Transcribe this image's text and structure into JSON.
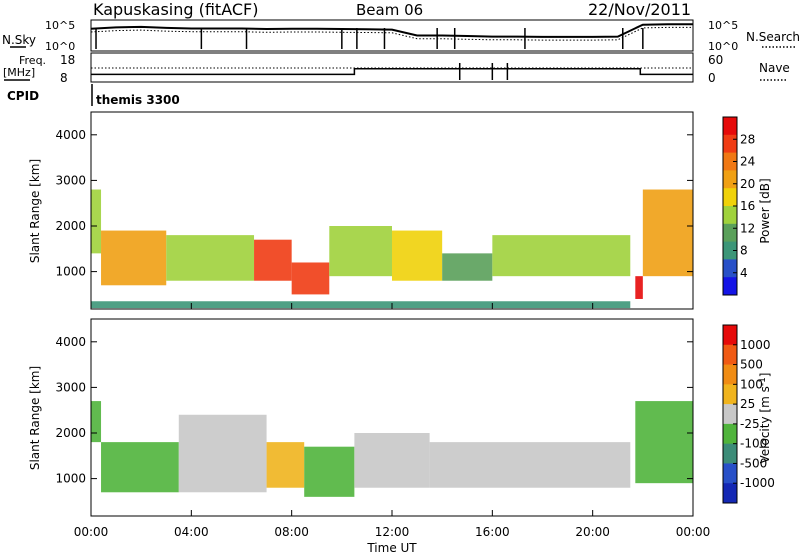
{
  "header": {
    "station": "Kapuskasing (fitACF)",
    "beam": "Beam 06",
    "date": "22/Nov/2011"
  },
  "sky_panel": {
    "left_label": "N.Sky",
    "right_label": "N.Search",
    "left_ticks": [
      "10^5",
      "10^0"
    ],
    "right_ticks": [
      "10^5",
      "10^0"
    ]
  },
  "freq_panel": {
    "left_label_top": "Freq.",
    "left_label_unit": "[MHz]",
    "right_label": "Nave",
    "left_ticks": [
      "18",
      "8"
    ],
    "right_ticks": [
      "60",
      "0"
    ]
  },
  "cpid_panel": {
    "label": "CPID",
    "mode": "themis 3300"
  },
  "power_panel": {
    "ylabel": "Slant Range [km]",
    "yticks": [
      "4000",
      "3000",
      "2000",
      "1000"
    ],
    "colorbar_label": "Power [dB]",
    "colorbar_ticks": [
      "28",
      "24",
      "20",
      "16",
      "12",
      "8",
      "4"
    ],
    "colors": [
      "#1414e6",
      "#2850c8",
      "#3c9678",
      "#5aa05a",
      "#a0d23c",
      "#f0d20a",
      "#f0a014",
      "#f07814",
      "#f03c14",
      "#e60a0a"
    ]
  },
  "velocity_panel": {
    "ylabel": "Slant Range [km]",
    "yticks": [
      "4000",
      "3000",
      "2000",
      "1000"
    ],
    "colorbar_label": "Velocity [m s^-1]",
    "colorbar_ticks": [
      "1000",
      "500",
      "100",
      "25",
      "-25",
      "-100",
      "-500",
      "-1000"
    ],
    "colors": [
      "#1428b4",
      "#2850c8",
      "#3c8c78",
      "#50b43c",
      "#c8c8c8",
      "#f0b41e",
      "#f08c14",
      "#f05a14",
      "#e60a0a"
    ]
  },
  "x_axis": {
    "ticks": [
      "00:00",
      "04:00",
      "08:00",
      "12:00",
      "16:00",
      "20:00",
      "00:00"
    ],
    "label": "Time UT"
  },
  "chart_data": [
    {
      "type": "line",
      "series": [
        {
          "name": "N.Sky",
          "x": [
            0,
            1,
            2,
            3,
            4,
            5,
            6,
            7,
            8,
            9,
            10,
            11,
            12,
            13,
            14,
            15,
            16,
            17,
            18,
            19,
            20,
            21,
            22,
            23,
            24
          ],
          "values": [
            0.75,
            0.8,
            0.82,
            0.78,
            0.76,
            0.76,
            0.76,
            0.74,
            0.75,
            0.75,
            0.74,
            0.73,
            0.72,
            0.5,
            0.5,
            0.48,
            0.46,
            0.46,
            0.45,
            0.45,
            0.45,
            0.46,
            0.9,
            0.92,
            0.92
          ]
        }
      ],
      "yscale": "log"
    },
    {
      "type": "line",
      "series": [
        {
          "name": "Freq.",
          "x": [
            0,
            10.5,
            10.5,
            21.9,
            21.9,
            24
          ],
          "values": [
            10.5,
            10.5,
            13,
            13,
            10.5,
            10.5
          ]
        }
      ],
      "ylim": [
        8,
        18
      ]
    },
    {
      "type": "heatmap",
      "title": "Power [dB]",
      "xlim": [
        0,
        24
      ],
      "ylim": [
        180,
        4500
      ],
      "color_range": [
        0,
        30
      ],
      "regions": [
        {
          "x0": 0.0,
          "x1": 0.4,
          "y0": 1400,
          "y1": 2800,
          "value": 14
        },
        {
          "x0": 0.4,
          "x1": 3.0,
          "y0": 700,
          "y1": 1900,
          "value": 20
        },
        {
          "x0": 3.0,
          "x1": 6.5,
          "y0": 800,
          "y1": 1800,
          "value": 12
        },
        {
          "x0": 6.5,
          "x1": 8.0,
          "y0": 800,
          "y1": 1700,
          "value": 26
        },
        {
          "x0": 8.0,
          "x1": 9.5,
          "y0": 500,
          "y1": 1200,
          "value": 24
        },
        {
          "x0": 9.5,
          "x1": 12.0,
          "y0": 900,
          "y1": 2000,
          "value": 14
        },
        {
          "x0": 12.0,
          "x1": 14.0,
          "y0": 800,
          "y1": 1900,
          "value": 16
        },
        {
          "x0": 14.0,
          "x1": 16.0,
          "y0": 800,
          "y1": 1400,
          "value": 10
        },
        {
          "x0": 16.0,
          "x1": 21.5,
          "y0": 900,
          "y1": 1800,
          "value": 14
        },
        {
          "x0": 21.7,
          "x1": 22.0,
          "y0": 400,
          "y1": 900,
          "value": 28
        },
        {
          "x0": 22.0,
          "x1": 24.0,
          "y0": 900,
          "y1": 2800,
          "value": 18
        },
        {
          "x0": 0.0,
          "x1": 21.5,
          "y0": 200,
          "y1": 350,
          "value": 6
        }
      ]
    },
    {
      "type": "heatmap",
      "title": "Velocity [m s^-1]",
      "xlim": [
        0,
        24
      ],
      "ylim": [
        180,
        4500
      ],
      "color_range": [
        -1000,
        1000
      ],
      "regions": [
        {
          "x0": 0.0,
          "x1": 0.4,
          "y0": 1800,
          "y1": 2700,
          "value": -300
        },
        {
          "x0": 0.4,
          "x1": 3.5,
          "y0": 700,
          "y1": 1800,
          "value": -200
        },
        {
          "x0": 3.5,
          "x1": 7.0,
          "y0": 700,
          "y1": 2400,
          "value": 0
        },
        {
          "x0": 7.0,
          "x1": 8.5,
          "y0": 800,
          "y1": 1800,
          "value": 150
        },
        {
          "x0": 8.5,
          "x1": 10.5,
          "y0": 600,
          "y1": 1700,
          "value": -150
        },
        {
          "x0": 10.5,
          "x1": 13.5,
          "y0": 800,
          "y1": 2000,
          "value": 50
        },
        {
          "x0": 13.5,
          "x1": 21.5,
          "y0": 800,
          "y1": 1800,
          "value": 0
        },
        {
          "x0": 21.7,
          "x1": 24.0,
          "y0": 900,
          "y1": 2700,
          "value": -200
        }
      ]
    }
  ]
}
